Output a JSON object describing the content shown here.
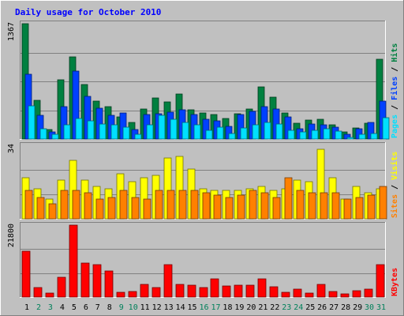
{
  "chart_data": [
    {
      "type": "bar",
      "title": "Daily usage for October 2010",
      "categories": [
        "1",
        "2",
        "3",
        "4",
        "5",
        "6",
        "7",
        "8",
        "9",
        "10",
        "11",
        "12",
        "13",
        "14",
        "15",
        "16",
        "17",
        "18",
        "19",
        "20",
        "21",
        "22",
        "23",
        "24",
        "25",
        "26",
        "27",
        "28",
        "29",
        "30",
        "31"
      ],
      "weekend_days": [
        "2",
        "3",
        "9",
        "10",
        "16",
        "17",
        "23",
        "24",
        "30",
        "31"
      ],
      "ylim": [
        0,
        1367
      ],
      "y_tick_label": "1367",
      "series": [
        {
          "name": "Hits",
          "color": "#008040",
          "values": [
            1367,
            460,
            112,
            700,
            972,
            644,
            448,
            382,
            262,
            194,
            352,
            488,
            440,
            538,
            344,
            306,
            288,
            240,
            296,
            354,
            616,
            492,
            308,
            190,
            228,
            238,
            166,
            86,
            134,
            190,
            946
          ]
        },
        {
          "name": "Files",
          "color": "#0040ff",
          "values": [
            770,
            282,
            86,
            382,
            806,
            504,
            366,
            280,
            312,
            114,
            286,
            296,
            322,
            346,
            286,
            230,
            216,
            152,
            286,
            324,
            384,
            358,
            264,
            124,
            174,
            168,
            136,
            60,
            120,
            194,
            446
          ]
        },
        {
          "name": "Pages",
          "color": "#00e0ff",
          "values": [
            394,
            124,
            52,
            172,
            246,
            220,
            180,
            168,
            144,
            52,
            168,
            284,
            236,
            200,
            172,
            106,
            136,
            66,
            134,
            168,
            194,
            178,
            100,
            82,
            102,
            118,
            96,
            22,
            60,
            66,
            250
          ]
        }
      ],
      "axis_label_parts": [
        "Pages",
        " / ",
        "Files",
        " / ",
        "Hits"
      ]
    },
    {
      "type": "bar",
      "ylim": [
        0,
        34
      ],
      "y_tick_label": "34",
      "series": [
        {
          "name": "Visits",
          "color": "#ffff00",
          "values": [
            19,
            14,
            9,
            18,
            27,
            18,
            15,
            14,
            21,
            17,
            19,
            20,
            28,
            29,
            23,
            14,
            13,
            13,
            13,
            14,
            15,
            13,
            14,
            18,
            17,
            32,
            19,
            9,
            15,
            12,
            14
          ]
        },
        {
          "name": "Sites",
          "color": "#ff8000",
          "values": [
            13,
            10,
            7,
            13,
            13,
            12,
            9,
            10,
            13,
            10,
            9,
            13,
            13,
            13,
            13,
            12,
            11,
            10,
            11,
            13,
            12,
            10,
            19,
            13,
            12,
            12,
            12,
            9,
            10,
            11,
            15
          ]
        }
      ],
      "axis_label_parts": [
        "Sites",
        " / ",
        "Visits"
      ]
    },
    {
      "type": "bar",
      "ylim": [
        0,
        21800
      ],
      "y_tick_label": "21800",
      "series": [
        {
          "name": "KBytes",
          "color": "#ff0000",
          "values": [
            14000,
            2800,
            1200,
            6000,
            21800,
            10200,
            9800,
            7800,
            1500,
            1600,
            3900,
            2800,
            9800,
            3800,
            3500,
            2800,
            5500,
            3400,
            3500,
            3500,
            5500,
            3200,
            1500,
            2400,
            1100,
            3900,
            1600,
            900,
            1800,
            2400,
            9800
          ]
        }
      ],
      "axis_label_parts": [
        "KBytes"
      ]
    }
  ]
}
